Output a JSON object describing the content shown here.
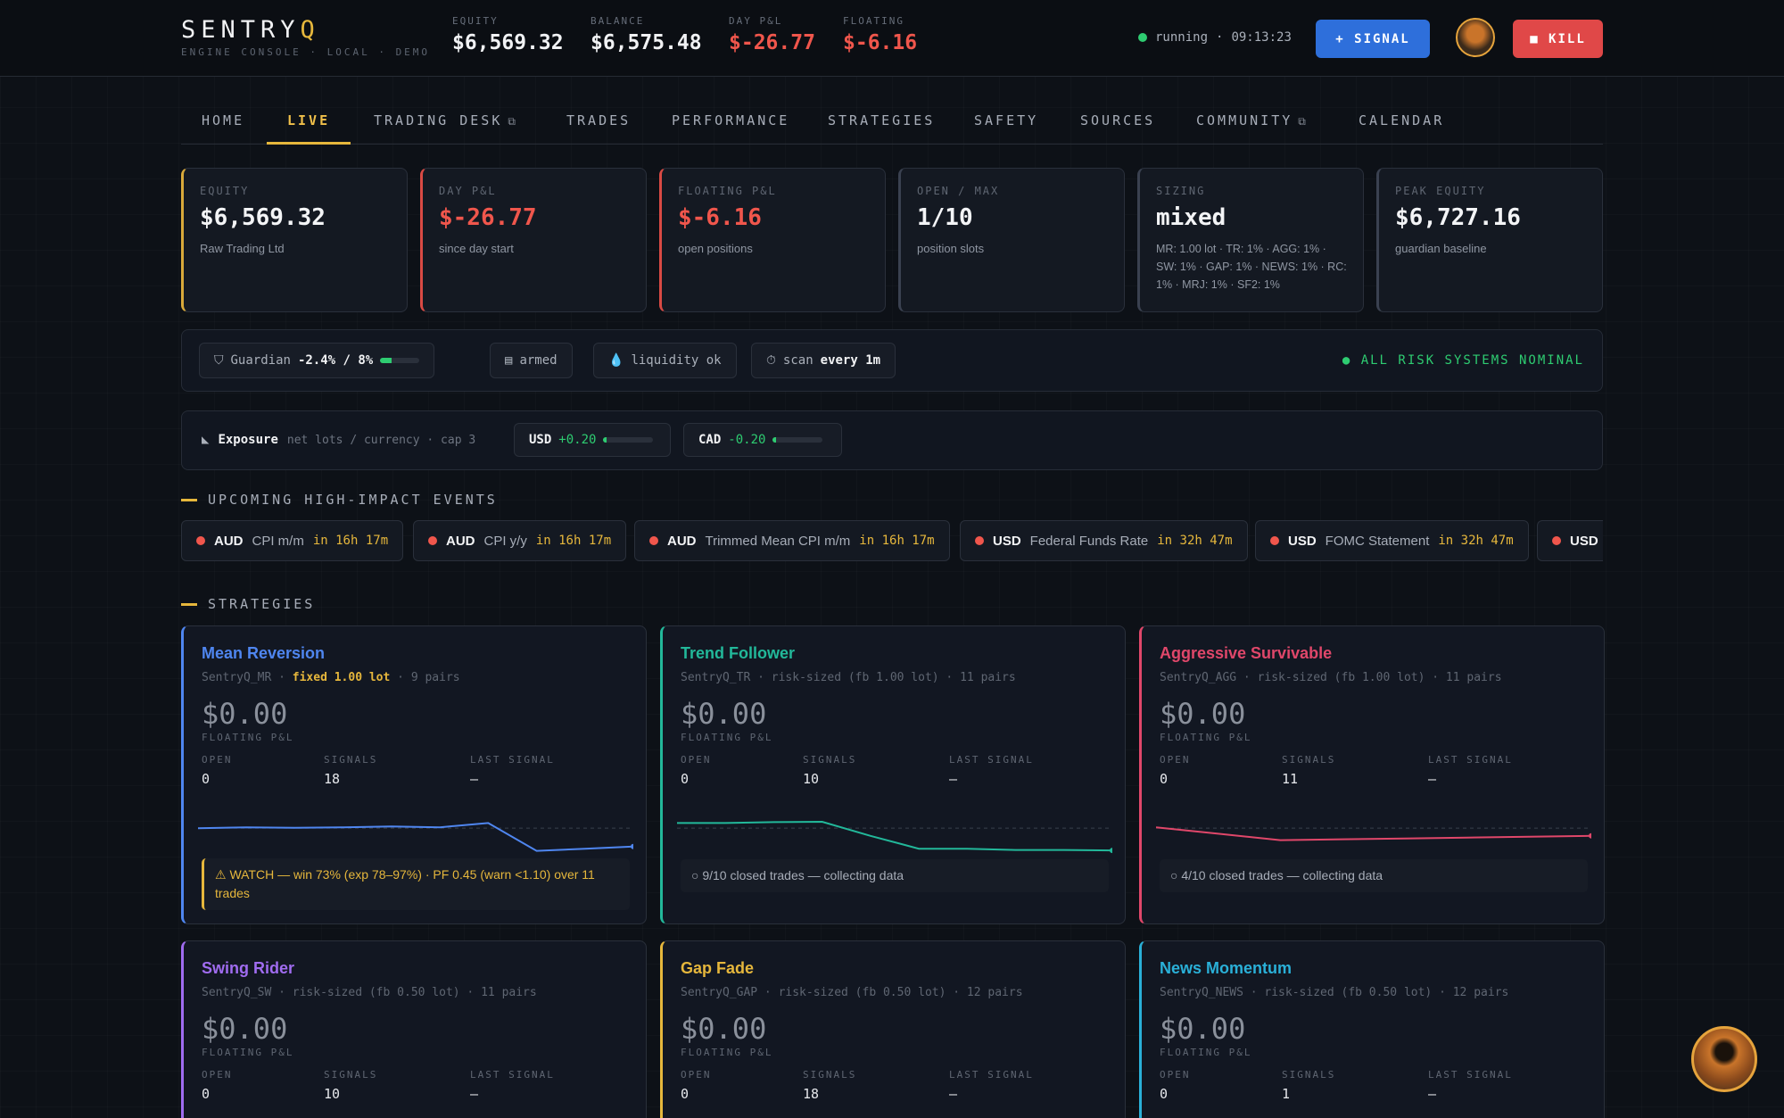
{
  "brand": {
    "name_main": "SENTRY",
    "name_accent": "Q",
    "subtitle": "ENGINE CONSOLE · LOCAL · DEMO"
  },
  "header_stats": [
    {
      "label": "EQUITY",
      "value": "$6,569.32"
    },
    {
      "label": "BALANCE",
      "value": "$6,575.48"
    },
    {
      "label": "DAY P&L",
      "value": "$-26.77"
    },
    {
      "label": "FLOATING",
      "value": "$-6.16"
    }
  ],
  "status": {
    "state": "running",
    "time": "09:13:23",
    "color": "#2ecc71"
  },
  "buttons": {
    "signal": "+ SIGNAL",
    "kill": "■ KILL"
  },
  "nav": {
    "tabs": [
      "HOME",
      "LIVE",
      "TRADING DESK",
      "TRADES",
      "PERFORMANCE",
      "STRATEGIES",
      "SAFETY",
      "SOURCES",
      "COMMUNITY",
      "CALENDAR"
    ],
    "active": "LIVE",
    "external_icon": "⧉"
  },
  "cards": [
    {
      "label": "EQUITY",
      "value": "$6,569.32",
      "sub": "Raw Trading Ltd"
    },
    {
      "label": "DAY P&L",
      "value": "$-26.77",
      "sub": "since day start"
    },
    {
      "label": "FLOATING P&L",
      "value": "$-6.16",
      "sub": "open positions"
    },
    {
      "label": "OPEN / MAX",
      "value": "1/10",
      "sub": "position slots"
    },
    {
      "label": "SIZING",
      "value": "mixed",
      "sub": "MR: 1.00 lot · TR: 1% · AGG: 1% · SW: 1% · GAP: 1% · NEWS: 1% · RC: 1% · MRJ: 1% · SF2: 1%"
    },
    {
      "label": "PEAK EQUITY",
      "value": "$6,727.16",
      "sub": "guardian baseline"
    }
  ],
  "risk": {
    "guardian_label": "Guardian",
    "guardian_value": "-2.4% / 8%",
    "guardian_fill": 0.3,
    "armed": "armed",
    "liquidity": "liquidity ok",
    "scan_label": "scan",
    "scan_value": "every 1m",
    "nominal": "● ALL RISK SYSTEMS NOMINAL"
  },
  "exposure": {
    "title": "Exposure",
    "desc": "net lots / currency · cap 3",
    "items": [
      {
        "cur": "USD",
        "val": "+0.20"
      },
      {
        "cur": "CAD",
        "val": "-0.20"
      }
    ]
  },
  "sections": {
    "events": "UPCOMING HIGH-IMPACT EVENTS",
    "strategies": "STRATEGIES"
  },
  "events": [
    {
      "cur": "AUD",
      "name": "CPI m/m",
      "when": "in 16h 17m"
    },
    {
      "cur": "AUD",
      "name": "CPI y/y",
      "when": "in 16h 17m"
    },
    {
      "cur": "AUD",
      "name": "Trimmed Mean CPI m/m",
      "when": "in 16h 17m"
    },
    {
      "cur": "USD",
      "name": "Federal Funds Rate",
      "when": "in 32h 47m"
    },
    {
      "cur": "USD",
      "name": "FOMC Statement",
      "when": "in 32h 47m"
    },
    {
      "cur": "USD",
      "name": "",
      "when": ""
    }
  ],
  "stat_labels": {
    "pnl": "FLOATING P&L",
    "open": "OPEN",
    "signals": "SIGNALS",
    "last": "LAST SIGNAL"
  },
  "strategies": [
    {
      "title": "Mean Reversion",
      "code": "SentryQ_MR",
      "sizing": "fixed 1.00 lot",
      "sizing_highlight": true,
      "pairs": "9 pairs",
      "pnl": "$0.00",
      "open": "0",
      "signals": "18",
      "last": "—",
      "color": "#4f86f0",
      "note": "⚠ WATCH — win 73% (exp 78–97%) · PF 0.45 (warn <1.10) over 11 trades",
      "note_type": "warn",
      "spark": [
        0.42,
        0.4,
        0.41,
        0.4,
        0.38,
        0.4,
        0.3,
        0.95,
        0.9,
        0.85
      ]
    },
    {
      "title": "Trend Follower",
      "code": "SentryQ_TR",
      "sizing": "risk-sized (fb 1.00 lot)",
      "sizing_highlight": false,
      "pairs": "11 pairs",
      "pnl": "$0.00",
      "open": "0",
      "signals": "10",
      "last": "—",
      "color": "#22b89a",
      "note": "○ 9/10 closed trades — collecting data",
      "note_type": "info",
      "spark": [
        0.3,
        0.3,
        0.28,
        0.27,
        0.6,
        0.9,
        0.9,
        0.93,
        0.93,
        0.94
      ]
    },
    {
      "title": "Aggressive Survivable",
      "code": "SentryQ_AGG",
      "sizing": "risk-sized (fb 1.00 lot)",
      "sizing_highlight": false,
      "pairs": "11 pairs",
      "pnl": "$0.00",
      "open": "0",
      "signals": "11",
      "last": "—",
      "color": "#e0476a",
      "note": "○ 4/10 closed trades — collecting data",
      "note_type": "info",
      "spark": [
        0.4,
        0.55,
        0.7,
        0.68,
        0.66,
        0.64,
        0.62,
        0.6
      ]
    },
    {
      "title": "Swing Rider",
      "code": "SentryQ_SW",
      "sizing": "risk-sized (fb 0.50 lot)",
      "sizing_highlight": false,
      "pairs": "11 pairs",
      "pnl": "$0.00",
      "open": "0",
      "signals": "10",
      "last": "—",
      "color": "#a06cf0"
    },
    {
      "title": "Gap Fade",
      "code": "SentryQ_GAP",
      "sizing": "risk-sized (fb 0.50 lot)",
      "sizing_highlight": false,
      "pairs": "12 pairs",
      "pnl": "$0.00",
      "open": "0",
      "signals": "18",
      "last": "—",
      "color": "#e6b73c"
    },
    {
      "title": "News Momentum",
      "code": "SentryQ_NEWS",
      "sizing": "risk-sized (fb 0.50 lot)",
      "sizing_highlight": false,
      "pairs": "12 pairs",
      "pnl": "$0.00",
      "open": "0",
      "signals": "1",
      "last": "—",
      "color": "#2ab0d8"
    }
  ]
}
